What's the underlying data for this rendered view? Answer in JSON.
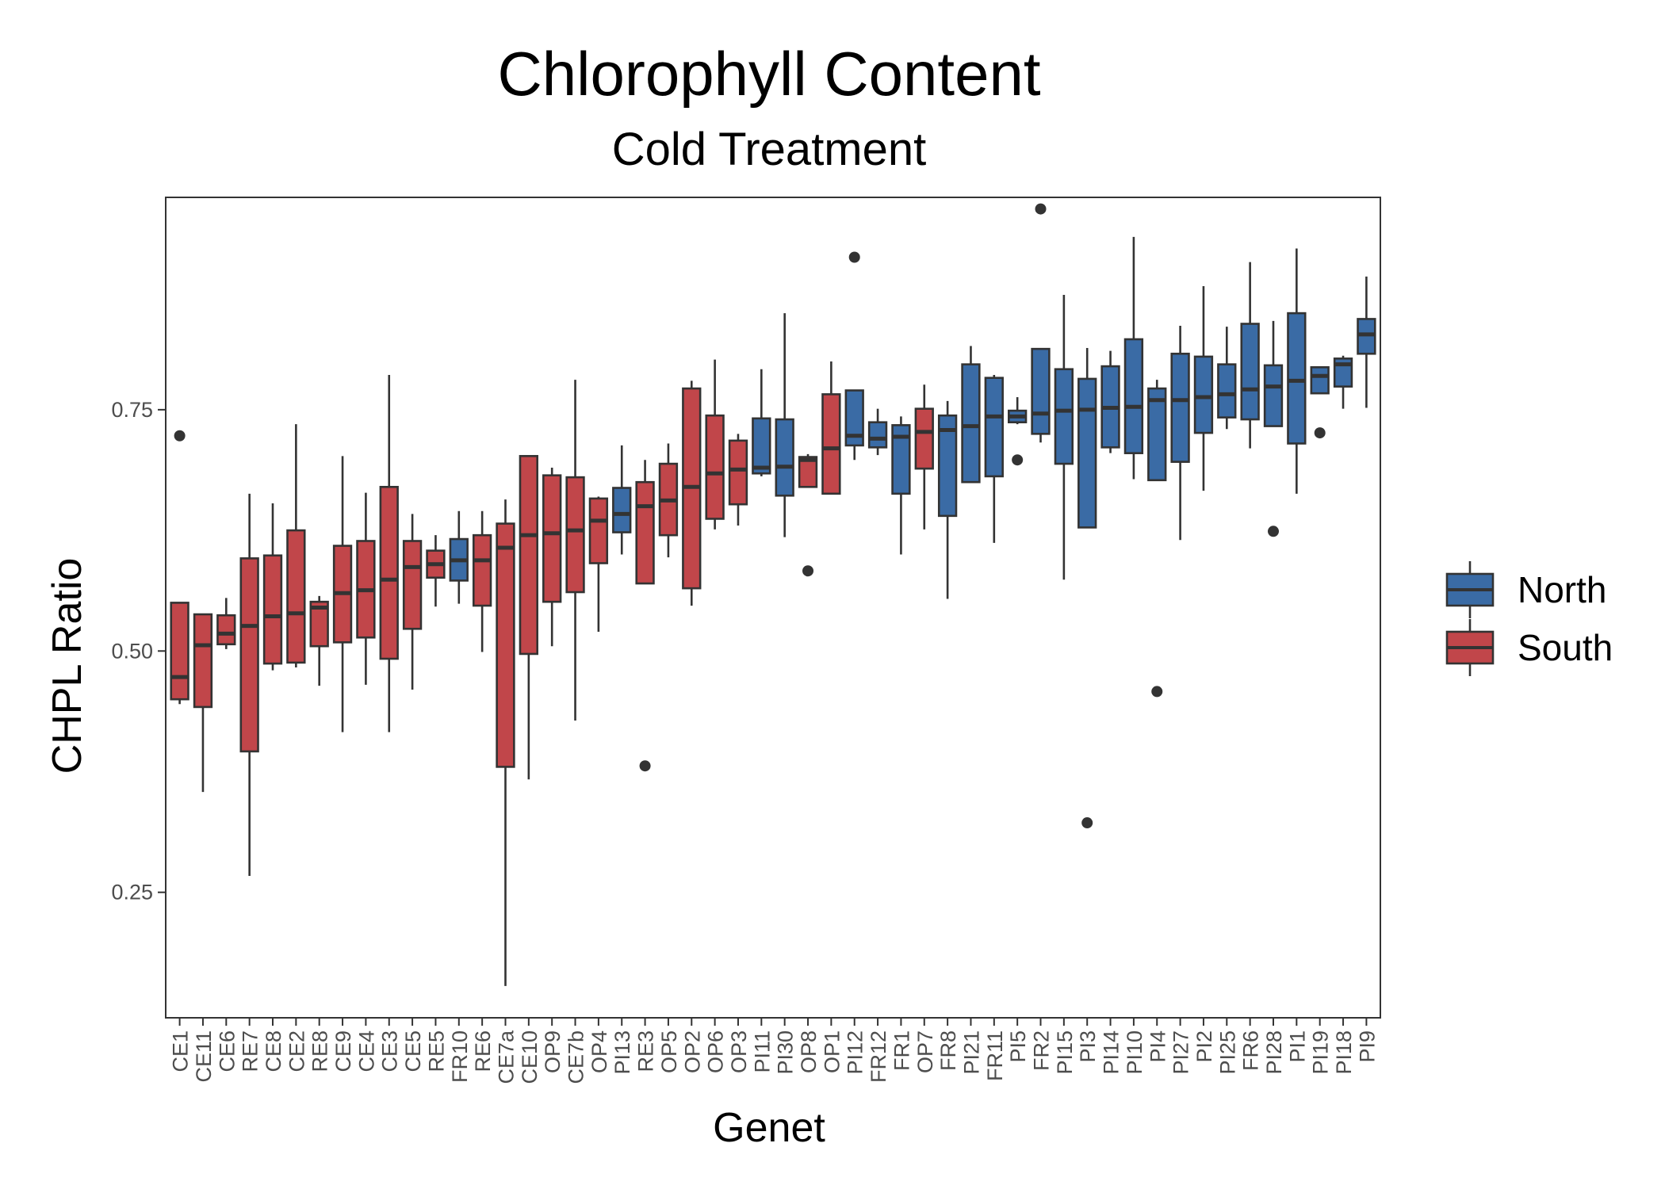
{
  "chart_data": {
    "type": "boxplot",
    "title": "Chlorophyll Content",
    "subtitle": "Cold Treatment",
    "xlabel": "Genet",
    "ylabel": "CHPL Ratio",
    "ylim": [
      0.12,
      0.97
    ],
    "yticks": [
      0.25,
      0.5,
      0.75
    ],
    "ytick_labels": [
      "0.25",
      "0.50",
      "0.75"
    ],
    "grid": false,
    "legend": {
      "placement": "right",
      "entries": [
        {
          "name": "North",
          "color": "#3A6BA5"
        },
        {
          "name": "South",
          "color": "#C1464A"
        }
      ]
    },
    "colors": {
      "North": "#3A6BA5",
      "South": "#C1464A",
      "outline": "#333333"
    },
    "boxes": [
      {
        "genet": "CE1",
        "group": "South",
        "whisker_low": 0.445,
        "q1": 0.45,
        "median": 0.473,
        "q3": 0.55,
        "whisker_high": 0.55,
        "outliers": [
          0.723
        ]
      },
      {
        "genet": "CE11",
        "group": "South",
        "whisker_low": 0.354,
        "q1": 0.442,
        "median": 0.506,
        "q3": 0.538,
        "whisker_high": 0.538,
        "outliers": []
      },
      {
        "genet": "CE6",
        "group": "South",
        "whisker_low": 0.502,
        "q1": 0.507,
        "median": 0.518,
        "q3": 0.537,
        "whisker_high": 0.555,
        "outliers": []
      },
      {
        "genet": "RE7",
        "group": "South",
        "whisker_low": 0.267,
        "q1": 0.396,
        "median": 0.526,
        "q3": 0.596,
        "whisker_high": 0.663,
        "outliers": []
      },
      {
        "genet": "CE8",
        "group": "South",
        "whisker_low": 0.48,
        "q1": 0.487,
        "median": 0.536,
        "q3": 0.599,
        "whisker_high": 0.653,
        "outliers": []
      },
      {
        "genet": "CE2",
        "group": "South",
        "whisker_low": 0.483,
        "q1": 0.488,
        "median": 0.539,
        "q3": 0.625,
        "whisker_high": 0.735,
        "outliers": []
      },
      {
        "genet": "RE8",
        "group": "South",
        "whisker_low": 0.464,
        "q1": 0.505,
        "median": 0.545,
        "q3": 0.551,
        "whisker_high": 0.557,
        "outliers": []
      },
      {
        "genet": "CE9",
        "group": "South",
        "whisker_low": 0.416,
        "q1": 0.509,
        "median": 0.56,
        "q3": 0.609,
        "whisker_high": 0.702,
        "outliers": []
      },
      {
        "genet": "CE4",
        "group": "South",
        "whisker_low": 0.465,
        "q1": 0.514,
        "median": 0.563,
        "q3": 0.614,
        "whisker_high": 0.664,
        "outliers": []
      },
      {
        "genet": "CE3",
        "group": "South",
        "whisker_low": 0.416,
        "q1": 0.492,
        "median": 0.574,
        "q3": 0.67,
        "whisker_high": 0.786,
        "outliers": []
      },
      {
        "genet": "CE5",
        "group": "South",
        "whisker_low": 0.46,
        "q1": 0.523,
        "median": 0.587,
        "q3": 0.614,
        "whisker_high": 0.642,
        "outliers": []
      },
      {
        "genet": "RE5",
        "group": "South",
        "whisker_low": 0.546,
        "q1": 0.576,
        "median": 0.59,
        "q3": 0.604,
        "whisker_high": 0.62,
        "outliers": []
      },
      {
        "genet": "FR10",
        "group": "North",
        "whisker_low": 0.549,
        "q1": 0.573,
        "median": 0.594,
        "q3": 0.616,
        "whisker_high": 0.645,
        "outliers": []
      },
      {
        "genet": "RE6",
        "group": "South",
        "whisker_low": 0.499,
        "q1": 0.547,
        "median": 0.594,
        "q3": 0.62,
        "whisker_high": 0.645,
        "outliers": []
      },
      {
        "genet": "CE7a",
        "group": "South",
        "whisker_low": 0.153,
        "q1": 0.38,
        "median": 0.607,
        "q3": 0.632,
        "whisker_high": 0.657,
        "outliers": []
      },
      {
        "genet": "CE10",
        "group": "South",
        "whisker_low": 0.367,
        "q1": 0.497,
        "median": 0.62,
        "q3": 0.702,
        "whisker_high": 0.702,
        "outliers": []
      },
      {
        "genet": "OP9",
        "group": "South",
        "whisker_low": 0.505,
        "q1": 0.551,
        "median": 0.622,
        "q3": 0.682,
        "whisker_high": 0.69,
        "outliers": []
      },
      {
        "genet": "CE7b",
        "group": "South",
        "whisker_low": 0.428,
        "q1": 0.561,
        "median": 0.625,
        "q3": 0.68,
        "whisker_high": 0.781,
        "outliers": []
      },
      {
        "genet": "OP4",
        "group": "South",
        "whisker_low": 0.52,
        "q1": 0.591,
        "median": 0.635,
        "q3": 0.658,
        "whisker_high": 0.66,
        "outliers": []
      },
      {
        "genet": "PI13",
        "group": "North",
        "whisker_low": 0.6,
        "q1": 0.623,
        "median": 0.642,
        "q3": 0.669,
        "whisker_high": 0.713,
        "outliers": []
      },
      {
        "genet": "RE3",
        "group": "South",
        "whisker_low": 0.57,
        "q1": 0.57,
        "median": 0.65,
        "q3": 0.675,
        "whisker_high": 0.698,
        "outliers": [
          0.381
        ]
      },
      {
        "genet": "OP5",
        "group": "South",
        "whisker_low": 0.597,
        "q1": 0.62,
        "median": 0.656,
        "q3": 0.694,
        "whisker_high": 0.715,
        "outliers": []
      },
      {
        "genet": "OP2",
        "group": "South",
        "whisker_low": 0.547,
        "q1": 0.565,
        "median": 0.67,
        "q3": 0.772,
        "whisker_high": 0.78,
        "outliers": []
      },
      {
        "genet": "OP6",
        "group": "South",
        "whisker_low": 0.626,
        "q1": 0.637,
        "median": 0.684,
        "q3": 0.744,
        "whisker_high": 0.802,
        "outliers": []
      },
      {
        "genet": "OP3",
        "group": "South",
        "whisker_low": 0.63,
        "q1": 0.652,
        "median": 0.688,
        "q3": 0.718,
        "whisker_high": 0.725,
        "outliers": []
      },
      {
        "genet": "PI11",
        "group": "North",
        "whisker_low": 0.681,
        "q1": 0.684,
        "median": 0.69,
        "q3": 0.741,
        "whisker_high": 0.792,
        "outliers": []
      },
      {
        "genet": "PI30",
        "group": "North",
        "whisker_low": 0.618,
        "q1": 0.661,
        "median": 0.691,
        "q3": 0.74,
        "whisker_high": 0.85,
        "outliers": []
      },
      {
        "genet": "OP8",
        "group": "South",
        "whisker_low": 0.67,
        "q1": 0.67,
        "median": 0.698,
        "q3": 0.701,
        "whisker_high": 0.704,
        "outliers": [
          0.583
        ]
      },
      {
        "genet": "OP1",
        "group": "South",
        "whisker_low": 0.663,
        "q1": 0.663,
        "median": 0.71,
        "q3": 0.766,
        "whisker_high": 0.8,
        "outliers": []
      },
      {
        "genet": "PI12",
        "group": "North",
        "whisker_low": 0.698,
        "q1": 0.713,
        "median": 0.723,
        "q3": 0.77,
        "whisker_high": 0.77,
        "outliers": [
          0.908
        ]
      },
      {
        "genet": "FR12",
        "group": "North",
        "whisker_low": 0.703,
        "q1": 0.711,
        "median": 0.72,
        "q3": 0.737,
        "whisker_high": 0.751,
        "outliers": []
      },
      {
        "genet": "FR1",
        "group": "North",
        "whisker_low": 0.6,
        "q1": 0.663,
        "median": 0.722,
        "q3": 0.734,
        "whisker_high": 0.743,
        "outliers": []
      },
      {
        "genet": "OP7",
        "group": "South",
        "whisker_low": 0.626,
        "q1": 0.689,
        "median": 0.727,
        "q3": 0.751,
        "whisker_high": 0.776,
        "outliers": []
      },
      {
        "genet": "FR8",
        "group": "North",
        "whisker_low": 0.554,
        "q1": 0.64,
        "median": 0.729,
        "q3": 0.744,
        "whisker_high": 0.759,
        "outliers": []
      },
      {
        "genet": "PI21",
        "group": "North",
        "whisker_low": 0.675,
        "q1": 0.675,
        "median": 0.733,
        "q3": 0.797,
        "whisker_high": 0.816,
        "outliers": []
      },
      {
        "genet": "FR11",
        "group": "North",
        "whisker_low": 0.612,
        "q1": 0.681,
        "median": 0.743,
        "q3": 0.783,
        "whisker_high": 0.786,
        "outliers": []
      },
      {
        "genet": "PI5",
        "group": "North",
        "whisker_low": 0.735,
        "q1": 0.737,
        "median": 0.743,
        "q3": 0.749,
        "whisker_high": 0.763,
        "outliers": [
          0.698
        ]
      },
      {
        "genet": "FR2",
        "group": "North",
        "whisker_low": 0.716,
        "q1": 0.725,
        "median": 0.746,
        "q3": 0.813,
        "whisker_high": 0.813,
        "outliers": [
          0.958
        ]
      },
      {
        "genet": "PI15",
        "group": "North",
        "whisker_low": 0.574,
        "q1": 0.694,
        "median": 0.749,
        "q3": 0.792,
        "whisker_high": 0.869,
        "outliers": []
      },
      {
        "genet": "PI3",
        "group": "North",
        "whisker_low": 0.628,
        "q1": 0.628,
        "median": 0.75,
        "q3": 0.782,
        "whisker_high": 0.814,
        "outliers": [
          0.322
        ]
      },
      {
        "genet": "PI14",
        "group": "North",
        "whisker_low": 0.705,
        "q1": 0.711,
        "median": 0.752,
        "q3": 0.795,
        "whisker_high": 0.811,
        "outliers": []
      },
      {
        "genet": "PI10",
        "group": "North",
        "whisker_low": 0.678,
        "q1": 0.705,
        "median": 0.753,
        "q3": 0.823,
        "whisker_high": 0.929,
        "outliers": []
      },
      {
        "genet": "PI4",
        "group": "North",
        "whisker_low": 0.677,
        "q1": 0.677,
        "median": 0.76,
        "q3": 0.772,
        "whisker_high": 0.781,
        "outliers": [
          0.458
        ]
      },
      {
        "genet": "PI27",
        "group": "North",
        "whisker_low": 0.615,
        "q1": 0.696,
        "median": 0.76,
        "q3": 0.808,
        "whisker_high": 0.837,
        "outliers": []
      },
      {
        "genet": "PI2",
        "group": "North",
        "whisker_low": 0.666,
        "q1": 0.726,
        "median": 0.763,
        "q3": 0.805,
        "whisker_high": 0.878,
        "outliers": []
      },
      {
        "genet": "PI25",
        "group": "North",
        "whisker_low": 0.73,
        "q1": 0.742,
        "median": 0.766,
        "q3": 0.797,
        "whisker_high": 0.836,
        "outliers": []
      },
      {
        "genet": "FR6",
        "group": "North",
        "whisker_low": 0.71,
        "q1": 0.74,
        "median": 0.771,
        "q3": 0.839,
        "whisker_high": 0.903,
        "outliers": []
      },
      {
        "genet": "PI28",
        "group": "North",
        "whisker_low": 0.733,
        "q1": 0.733,
        "median": 0.774,
        "q3": 0.796,
        "whisker_high": 0.842,
        "outliers": [
          0.624
        ]
      },
      {
        "genet": "PI1",
        "group": "North",
        "whisker_low": 0.663,
        "q1": 0.715,
        "median": 0.78,
        "q3": 0.85,
        "whisker_high": 0.917,
        "outliers": []
      },
      {
        "genet": "PI19",
        "group": "North",
        "whisker_low": 0.767,
        "q1": 0.767,
        "median": 0.785,
        "q3": 0.794,
        "whisker_high": 0.794,
        "outliers": [
          0.726
        ]
      },
      {
        "genet": "PI18",
        "group": "North",
        "whisker_low": 0.751,
        "q1": 0.774,
        "median": 0.797,
        "q3": 0.803,
        "whisker_high": 0.806,
        "outliers": []
      },
      {
        "genet": "PI9",
        "group": "North",
        "whisker_low": 0.752,
        "q1": 0.808,
        "median": 0.828,
        "q3": 0.844,
        "whisker_high": 0.888,
        "outliers": []
      }
    ]
  }
}
